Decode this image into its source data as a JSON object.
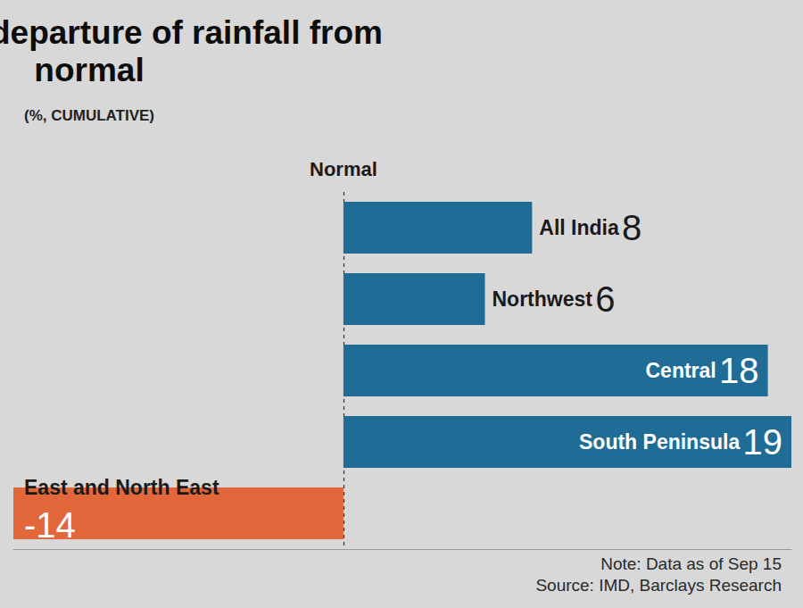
{
  "chart_data": {
    "type": "bar",
    "orientation": "horizontal",
    "title": "Region-wise departure of rainfall from normal",
    "subtitle": "(%, CUMULATIVE)",
    "categories": [
      "All India",
      "Northwest",
      "Central",
      "South Peninsula",
      "East and North East"
    ],
    "values": [
      8,
      6,
      18,
      19,
      -14
    ],
    "colors": [
      "#1f6d96",
      "#1f6d96",
      "#1f6d96",
      "#1f6d96",
      "#e2673b"
    ],
    "xlim": [
      -14,
      19
    ],
    "xticks": [
      0
    ],
    "grid": true,
    "data_labels": true,
    "tick_labels": false,
    "annotations": [
      "Normal",
      "Note: Data as of Sep 15",
      "Source: IMD, Barclays Research"
    ]
  }
}
